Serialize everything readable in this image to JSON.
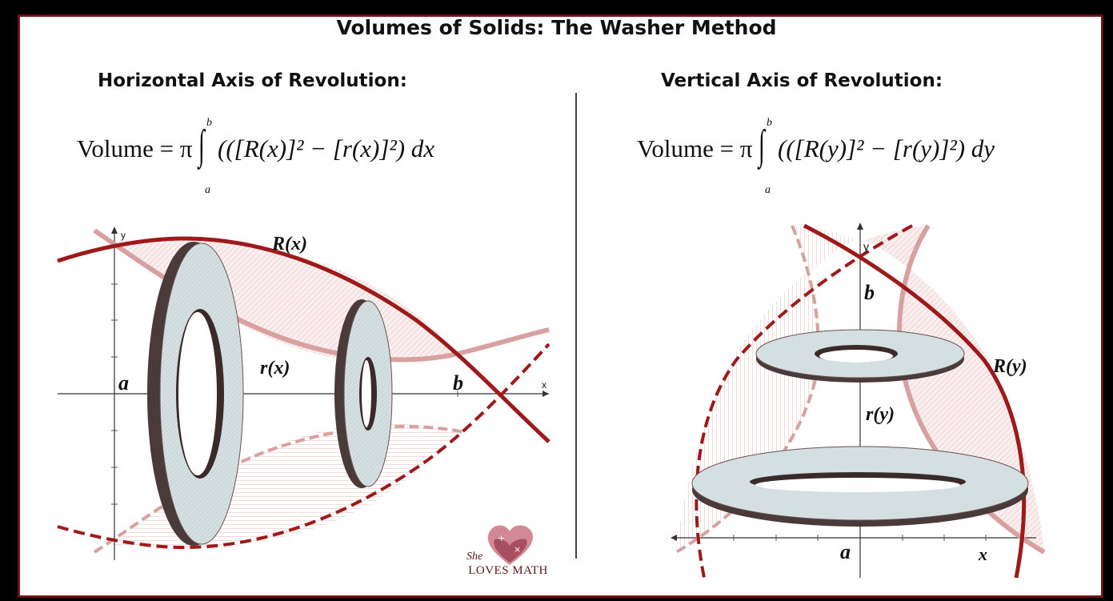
{
  "title": "Volumes of Solids: The Washer Method",
  "left": {
    "heading": "Horizontal Axis of Revolution:",
    "formula": {
      "lhs": "Volume = π",
      "upper": "b",
      "lower": "a",
      "body": "(([R(x)]² − [r(x)]²) dx"
    },
    "labels": {
      "outer": "R(x)",
      "inner": "r(x)",
      "a": "a",
      "b": "b",
      "axis_x": "x",
      "axis_y": "y"
    }
  },
  "right": {
    "heading": "Vertical Axis of Revolution:",
    "formula": {
      "lhs": "Volume = π",
      "upper": "b",
      "lower": "a",
      "body": "(([R(y)]² − [r(y)]²) dy"
    },
    "labels": {
      "outer": "R(y)",
      "inner": "r(y)",
      "a": "a",
      "b": "b",
      "axis_x": "x",
      "axis_y": "y"
    }
  },
  "logo": {
    "script": "She",
    "name": "LOVES MATH"
  },
  "colors": {
    "dark_red": "#9e1a1a",
    "pink": "#d9a0a0",
    "washer_fill": "#d4dfe1",
    "frame": "#7a1515"
  }
}
